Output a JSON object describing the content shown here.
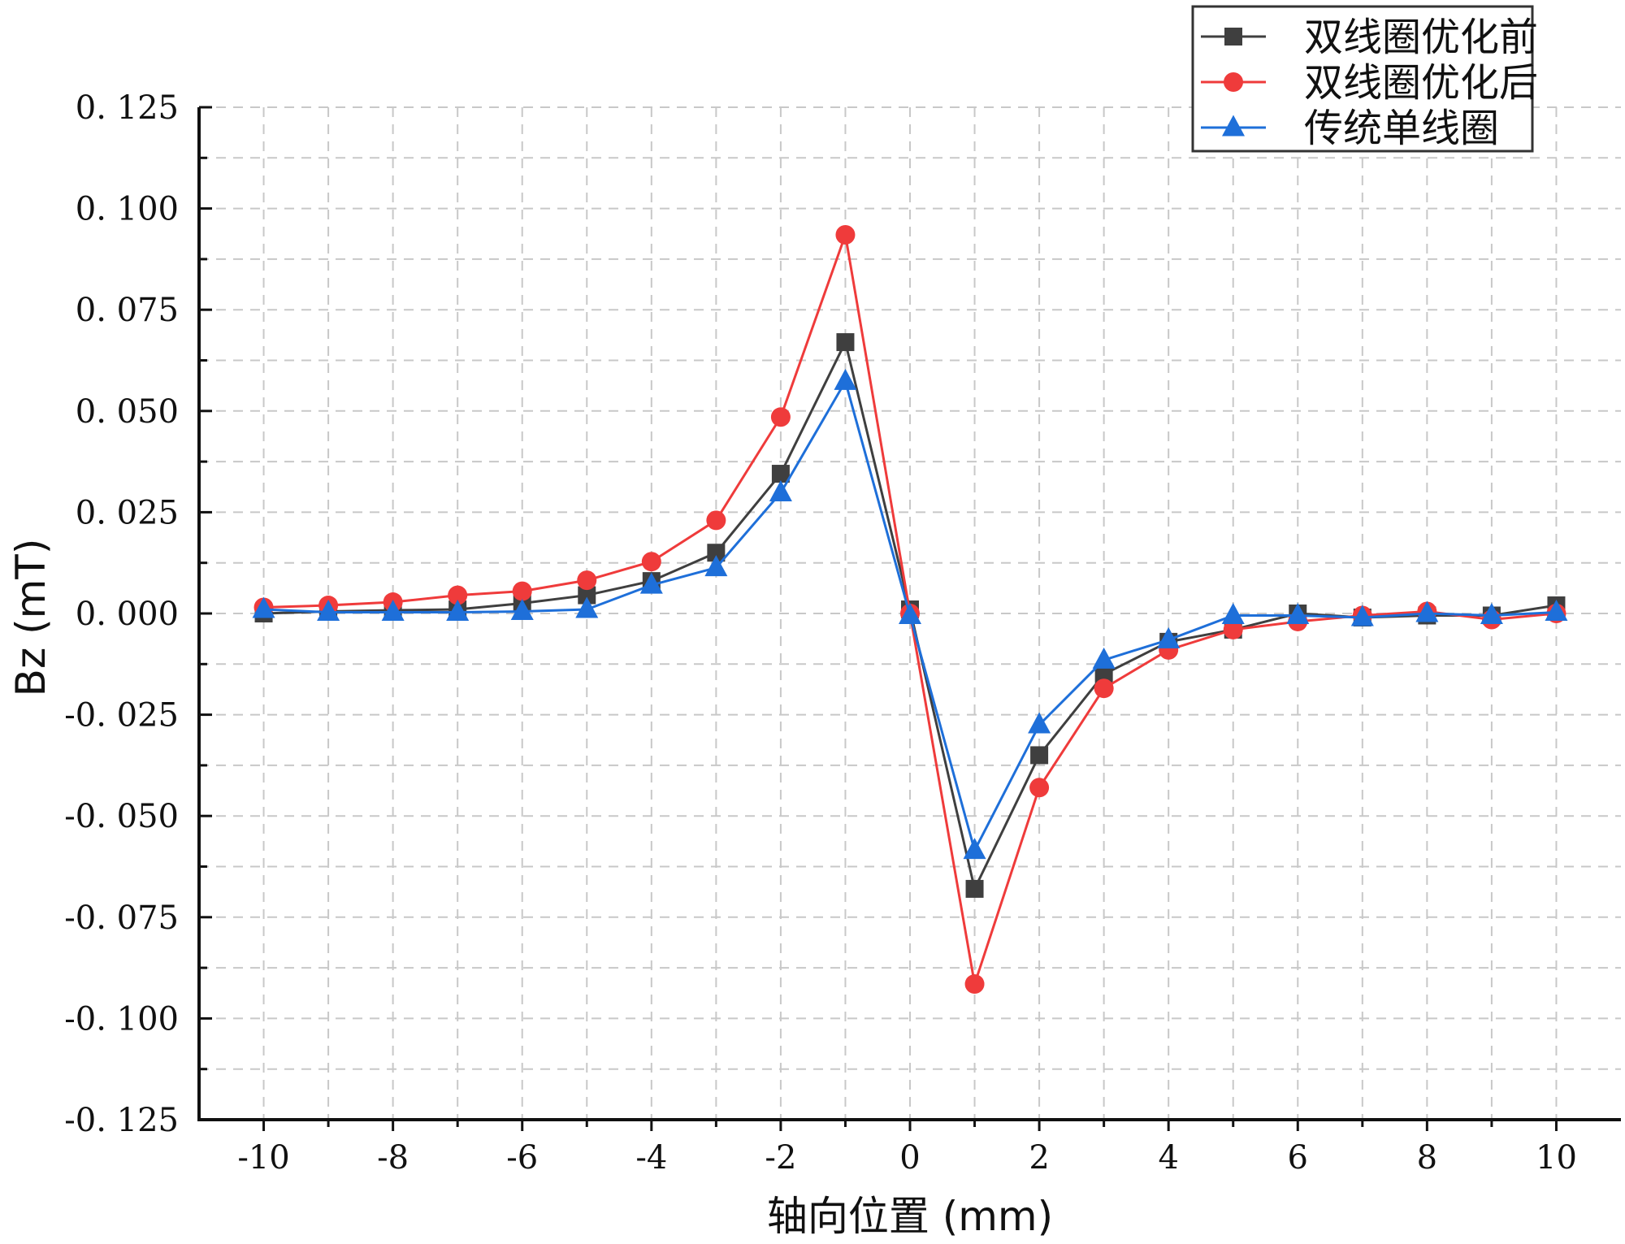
{
  "chart_data": {
    "type": "line",
    "title": "",
    "xlabel": "轴向位置 (mm)",
    "ylabel": "Bz (mT)",
    "xlim": [
      -11,
      11
    ],
    "ylim": [
      -0.125,
      0.125
    ],
    "x_ticks": [
      -10,
      -8,
      -6,
      -4,
      -2,
      0,
      2,
      4,
      6,
      8,
      10
    ],
    "x_tick_labels": [
      "-10",
      "-8",
      "-6",
      "-4",
      "-2",
      "0",
      "2",
      "4",
      "6",
      "8",
      "10"
    ],
    "y_ticks": [
      0.125,
      0.1,
      0.075,
      0.05,
      0.025,
      0,
      -0.025,
      -0.05,
      -0.075,
      -0.1,
      -0.125
    ],
    "y_tick_labels": [
      "0. 125",
      "0. 100",
      "0. 075",
      "0. 050",
      "0. 025",
      "0. 000",
      "-0. 025",
      "-0. 050",
      "-0. 075",
      "-0. 100",
      "-0. 125"
    ],
    "grid": true,
    "legend_position": "top-right",
    "x": [
      -10,
      -9,
      -8,
      -7,
      -6,
      -5,
      -4,
      -3,
      -2,
      -1,
      0,
      1,
      2,
      3,
      4,
      5,
      6,
      7,
      8,
      9,
      10
    ],
    "series": [
      {
        "name": "双线圈优化前",
        "color": "#3f3f3f",
        "marker": "square",
        "values": [
          0.0,
          0.0005,
          0.0008,
          0.001,
          0.0025,
          0.0045,
          0.008,
          0.015,
          0.0345,
          0.067,
          0.001,
          -0.068,
          -0.035,
          -0.015,
          -0.007,
          -0.004,
          0.0,
          -0.001,
          -0.0005,
          -0.0005,
          0.002
        ]
      },
      {
        "name": "双线圈优化后",
        "color": "#ef3b3b",
        "marker": "circle",
        "values": [
          0.0015,
          0.002,
          0.0028,
          0.0045,
          0.0055,
          0.0082,
          0.0128,
          0.023,
          0.0485,
          0.0935,
          0.0,
          -0.0915,
          -0.043,
          -0.0185,
          -0.009,
          -0.004,
          -0.002,
          -0.0005,
          0.0005,
          -0.0015,
          0.0
        ]
      },
      {
        "name": "传统单线圈",
        "color": "#1e6fd9",
        "marker": "triangle",
        "values": [
          0.001,
          0.0003,
          0.0003,
          0.0003,
          0.0005,
          0.001,
          0.007,
          0.0113,
          0.0298,
          0.0573,
          -0.0005,
          -0.0585,
          -0.0275,
          -0.0115,
          -0.0065,
          -0.0005,
          -0.0005,
          -0.001,
          0.0,
          -0.0005,
          0.0003
        ]
      }
    ]
  }
}
